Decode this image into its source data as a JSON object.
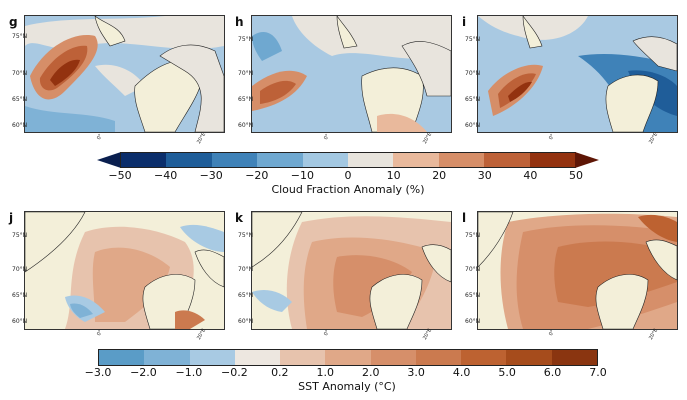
{
  "cloud_row": {
    "panels": [
      {
        "label": "g",
        "lat_labels": [
          "75°N",
          "70°N",
          "65°N",
          "60°N"
        ],
        "lon_labels": [
          "0°",
          "20°E"
        ]
      },
      {
        "label": "h",
        "lat_labels": [
          "75°N",
          "70°N",
          "65°N",
          "60°N"
        ],
        "lon_labels": [
          "0°",
          "20°E"
        ]
      },
      {
        "label": "i",
        "lat_labels": [
          "75°N",
          "70°N",
          "65°N",
          "60°N"
        ],
        "lon_labels": [
          "0°",
          "20°E"
        ]
      }
    ],
    "colorbar": {
      "title": "Cloud Fraction Anomaly (%)",
      "ticks": [
        "−50",
        "−40",
        "−30",
        "−20",
        "−10",
        "0",
        "10",
        "20",
        "30",
        "40",
        "50"
      ],
      "colors": [
        "#0b2e6b",
        "#1f5d99",
        "#3f82b8",
        "#6fa8d0",
        "#a3c8e2",
        "#e8e4dd",
        "#e9b99c",
        "#d68e68",
        "#bd6138",
        "#93320f"
      ],
      "extend_left_color": "#0a1f4f",
      "extend_right_color": "#5e1606"
    }
  },
  "sst_row": {
    "panels": [
      {
        "label": "j",
        "lat_labels": [
          "75°N",
          "70°N",
          "65°N",
          "60°N"
        ],
        "lon_labels": [
          "0°",
          "20°E"
        ]
      },
      {
        "label": "k",
        "lat_labels": [
          "75°N",
          "70°N",
          "65°N",
          "60°N"
        ],
        "lon_labels": [
          "0°",
          "20°E"
        ]
      },
      {
        "label": "l",
        "lat_labels": [
          "75°N",
          "70°N",
          "65°N",
          "60°N"
        ],
        "lon_labels": [
          "0°",
          "20°E"
        ]
      }
    ],
    "colorbar": {
      "title": "SST Anomaly (°C)",
      "ticks": [
        "−3.0",
        "−2.0",
        "−1.0",
        "−0.2",
        "0.2",
        "1.0",
        "2.0",
        "3.0",
        "4.0",
        "5.0",
        "6.0",
        "7.0"
      ],
      "colors": [
        "#5a9cc7",
        "#7fb2d6",
        "#a8cae3",
        "#ede7e0",
        "#e7c3ad",
        "#e0a888",
        "#d68f6a",
        "#cb7a4f",
        "#bd6231",
        "#a64c1c",
        "#8a3510"
      ]
    }
  },
  "colors": {
    "land": "#f3efd9",
    "coast": "#222222"
  }
}
